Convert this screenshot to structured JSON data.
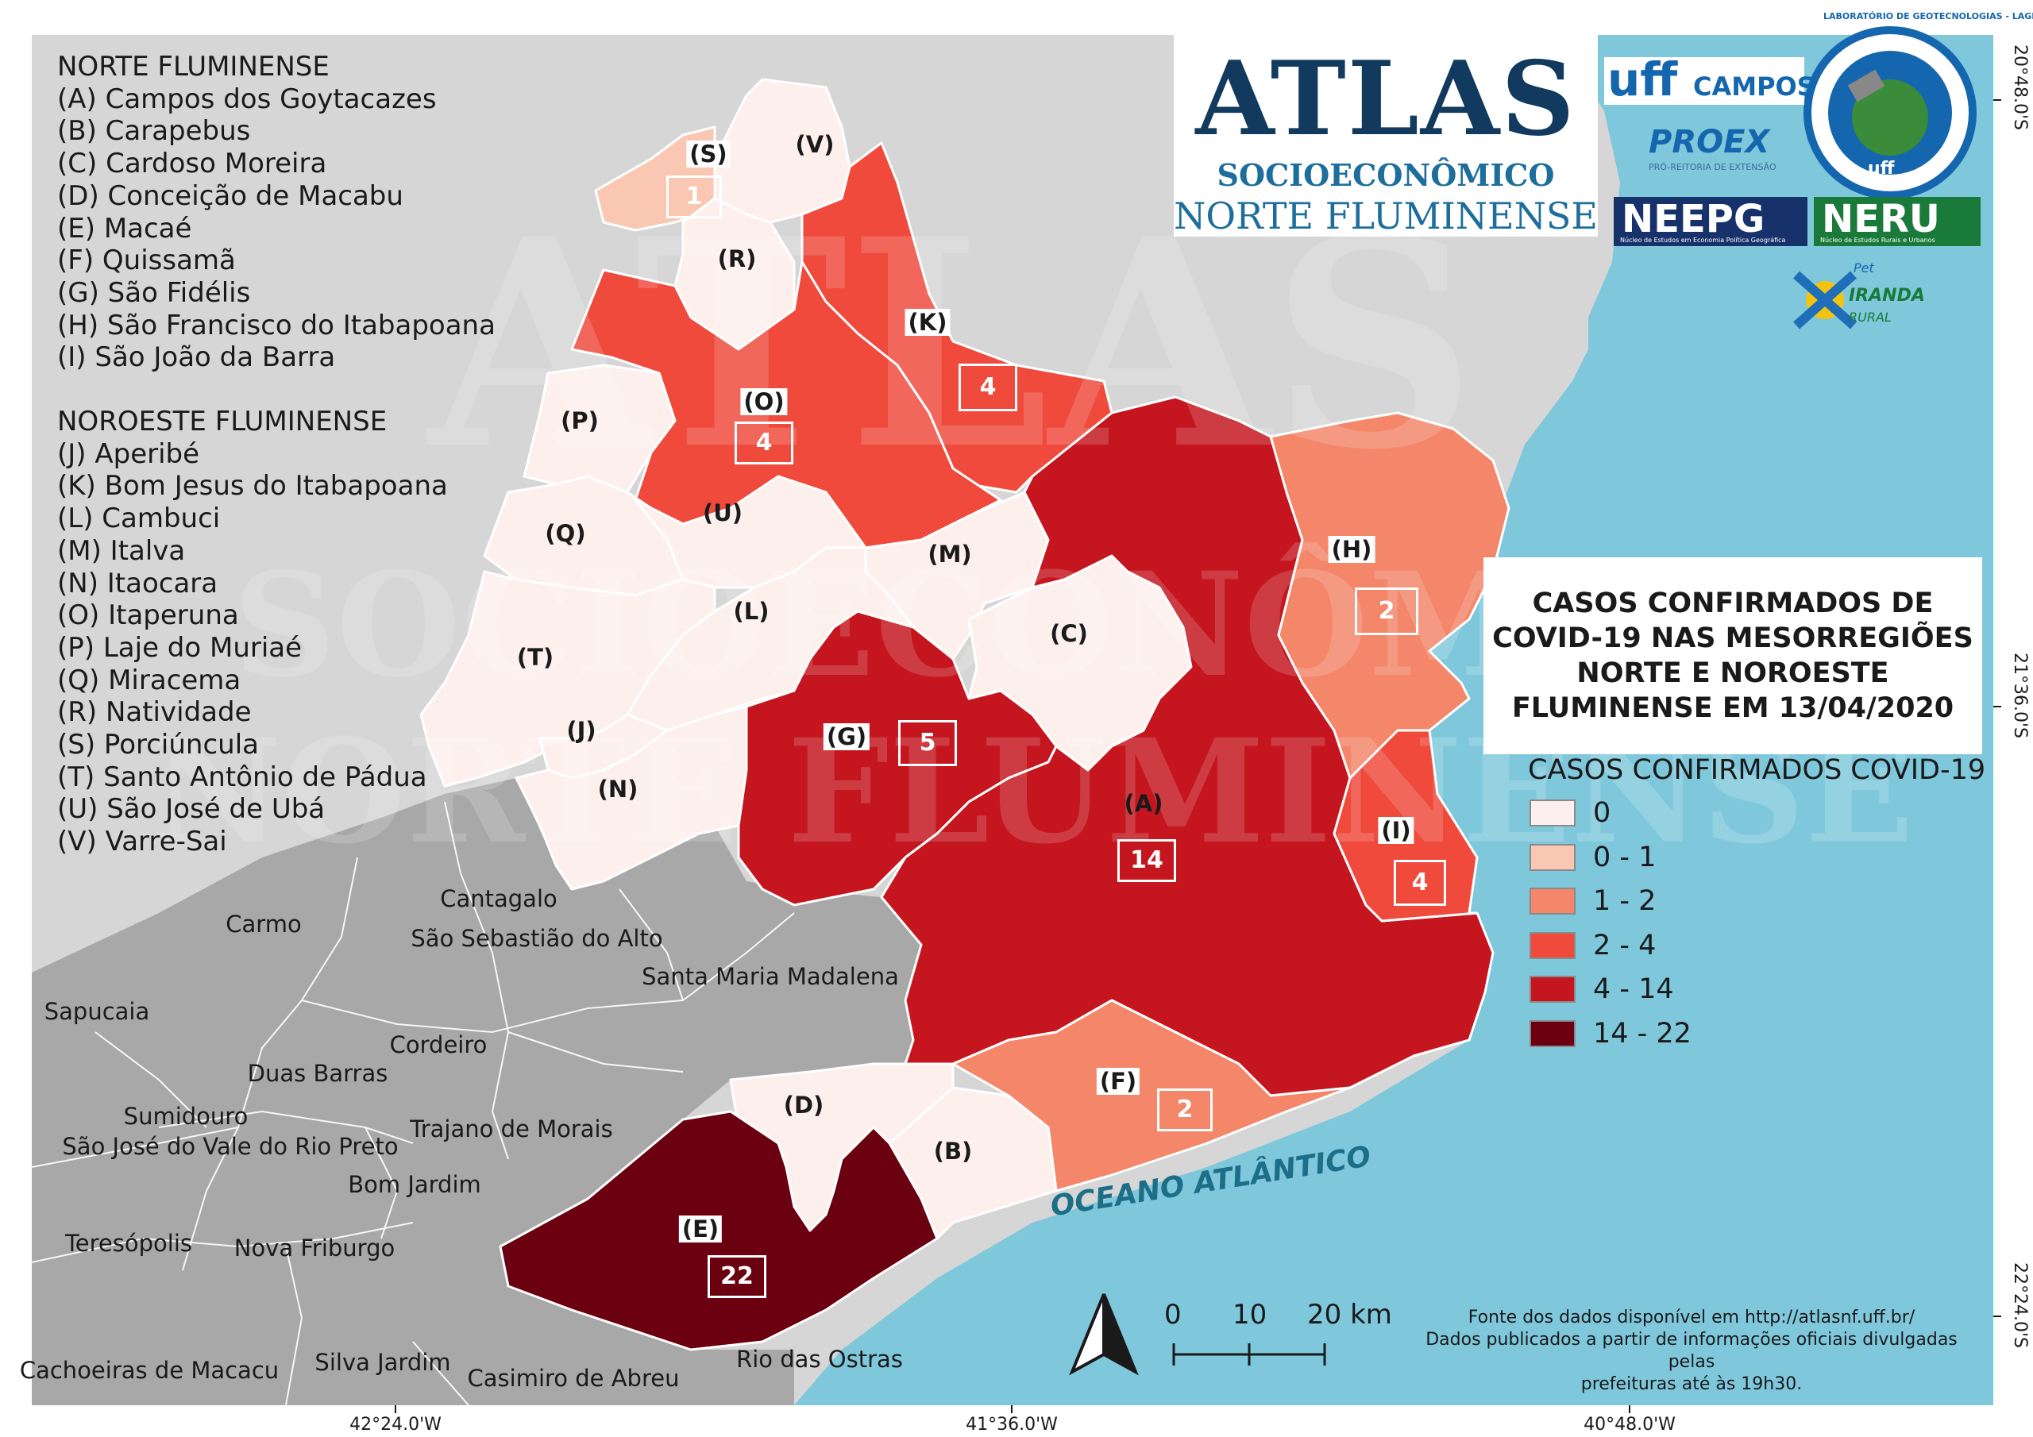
{
  "legend_groups": [
    {
      "heading": "NORTE FLUMINENSE",
      "items": [
        "(A) Campos dos Goytacazes",
        "(B) Carapebus",
        "(C) Cardoso Moreira",
        "(D) Conceição de Macabu",
        "(E) Macaé",
        "(F) Quissamã",
        "(G) São Fidélis",
        "(H) São Francisco do Itabapoana",
        "(I) São João da Barra"
      ]
    },
    {
      "heading": "NOROESTE FLUMINENSE",
      "items": [
        "(J) Aperibé",
        "(K) Bom Jesus do Itabapoana",
        "(L) Cambuci",
        "(M) Italva",
        "(N) Itaocara",
        "(O) Itaperuna",
        "(P) Laje do Muriaé",
        "(Q) Miracema",
        "(R) Natividade",
        "(S) Porciúncula",
        "(T) Santo Antônio de Pádua",
        "(U) São José de Ubá",
        "(V) Varre-Sai"
      ]
    }
  ],
  "logo": {
    "atlas": "ATLAS",
    "socio": "SOCIOECONÔMICO",
    "norte": "NORTE FLUMINENSE"
  },
  "partner_logos": {
    "uff": "uff",
    "campos": "CAMPOS",
    "proex": "PROEX",
    "proex_sub": "PRÓ-REITORIA DE EXTENSÃO",
    "neepg": "NEEPG",
    "neepg_sub": "Núcleo de Estudos em Economia Política Geográfica",
    "neru": "NERU",
    "neru_sub": "Núcleo de Estudos Rurais e Urbanos",
    "lab": "LABORATÓRIO DE GEOTECNOLOGIAS - LAGEOT",
    "lab_uff": "uff",
    "pet": "Pet",
    "ciranda": "IRANDA",
    "rural": "RURAL"
  },
  "title": "CASOS CONFIRMADOS DE\nCOVID-19 NAS MESORREGIÕES\nNORTE E NOROESTE\nFLUMINENSE EM 13/04/2020",
  "classes_title": "CASOS CONFIRMADOS COVID-19",
  "classes": [
    {
      "label": "0",
      "color": "#fdf0ec"
    },
    {
      "label": "0 - 1",
      "color": "#f9c7b2"
    },
    {
      "label": "1 - 2",
      "color": "#f4876a"
    },
    {
      "label": "2 - 4",
      "color": "#ef4a3c"
    },
    {
      "label": "4 - 14",
      "color": "#c5161f"
    },
    {
      "label": "14 - 22",
      "color": "#6b0010"
    }
  ],
  "municipalities": [
    {
      "code": "(A)",
      "cases": "14",
      "class": 4
    },
    {
      "code": "(B)",
      "class": 0
    },
    {
      "code": "(C)",
      "class": 0
    },
    {
      "code": "(D)",
      "class": 0
    },
    {
      "code": "(E)",
      "cases": "22",
      "class": 5
    },
    {
      "code": "(F)",
      "cases": "2",
      "class": 2
    },
    {
      "code": "(G)",
      "cases": "5",
      "class": 4
    },
    {
      "code": "(H)",
      "cases": "2",
      "class": 2
    },
    {
      "code": "(I)",
      "cases": "4",
      "class": 3
    },
    {
      "code": "(J)",
      "class": 0
    },
    {
      "code": "(K)",
      "cases": "4",
      "class": 3
    },
    {
      "code": "(L)",
      "class": 0
    },
    {
      "code": "(M)",
      "class": 0
    },
    {
      "code": "(N)",
      "class": 0
    },
    {
      "code": "(O)",
      "cases": "4",
      "class": 3
    },
    {
      "code": "(P)",
      "class": 0
    },
    {
      "code": "(Q)",
      "class": 0
    },
    {
      "code": "(R)",
      "class": 0
    },
    {
      "code": "(S)",
      "cases": "1",
      "class": 1
    },
    {
      "code": "(T)",
      "class": 0
    },
    {
      "code": "(U)",
      "class": 0
    },
    {
      "code": "(V)",
      "class": 0
    }
  ],
  "neighbor_places": [
    "Cantagalo",
    "Carmo",
    "São Sebastião do Alto",
    "Santa Maria Madalena",
    "Sapucaia",
    "Cordeiro",
    "Duas Barras",
    "Sumidouro",
    "São José do Vale do Rio Preto",
    "Trajano de Morais",
    "Bom Jardim",
    "Teresópolis",
    "Nova Friburgo",
    "Cachoeiras de Macacu",
    "Silva Jardim",
    "Casimiro de Abreu",
    "Rio das Ostras"
  ],
  "ocean_label": "OCEANO ATLÂNTICO",
  "scale_bar": {
    "labels": [
      "0",
      "10",
      "20 km"
    ]
  },
  "source": "Fonte dos dados disponível em http://atlasnf.uff.br/\nDados publicados a partir de informações oficiais divulgadas pelas\nprefeituras até às 19h30.",
  "coords_bottom": [
    "42°24.0'W",
    "41°36.0'W",
    "40°48.0'W"
  ],
  "coords_right": [
    "20°48.0'S",
    "21°36.0'S",
    "22°24.0'S"
  ],
  "watermark": {
    "line1": "ATLAS",
    "line2": "SOCIOECONÔMICO",
    "line3": "NORTE FLUMINENSE"
  },
  "colors": {
    "ocean": "#7fc8dc",
    "land_light": "#d6d6d6",
    "land_dark": "#a8a8a8",
    "accent": "#123a5e"
  }
}
